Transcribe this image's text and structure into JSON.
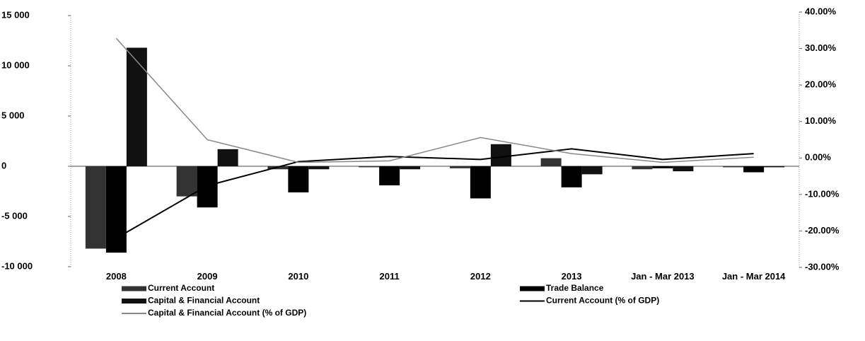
{
  "chart_data": {
    "type": "bar",
    "categories": [
      "2008",
      "2009",
      "2010",
      "2011",
      "2012",
      "2013",
      "Jan - Mar 2013",
      "Jan - Mar 2014"
    ],
    "series": [
      {
        "name": "Current Account",
        "color": "#333333",
        "values": [
          -8200,
          -3000,
          -300,
          -100,
          -200,
          800,
          -300,
          -100
        ]
      },
      {
        "name": "Trade Balance",
        "color": "#000000",
        "values": [
          -8600,
          -4100,
          -2600,
          -1900,
          -3200,
          -2100,
          -200,
          -600
        ]
      },
      {
        "name": "Capital & Financial Account",
        "color": "#111111",
        "values": [
          11800,
          1700,
          -300,
          -300,
          2200,
          -800,
          -500,
          -100
        ]
      },
      {
        "name": "Current Account (% of GDP)",
        "color": "#000000",
        "type": "line",
        "axis": "y2",
        "values": [
          -22,
          -7.6,
          -1,
          0.4,
          -0.4,
          2.5,
          -0.4,
          1.2
        ]
      },
      {
        "name": "Capital & Financial Account (% of GDP)",
        "color": "#888888",
        "type": "line",
        "axis": "y2",
        "values": [
          32.8,
          5,
          -1.2,
          -0.8,
          5.6,
          1.2,
          -1.2,
          0.2
        ]
      }
    ],
    "ylim": [
      -10000,
      15000
    ],
    "yticks": [
      {
        "value": -10000,
        "label": "-10 000"
      },
      {
        "value": -5000,
        "label": "-5 000"
      },
      0,
      {
        "value": 5000,
        "label": "5 000"
      },
      {
        "value": 10000,
        "label": "10 000"
      },
      {
        "value": 15000,
        "label": "15 000"
      }
    ],
    "y2lim": [
      -30,
      40
    ],
    "y2ticks": [
      {
        "value": -30,
        "label": "-30.00%"
      },
      {
        "value": -20,
        "label": "-20.00%"
      },
      {
        "value": -10,
        "label": "-10.00%"
      },
      {
        "value": 0,
        "label": "0.00%"
      },
      {
        "value": 10,
        "label": "10.00%"
      },
      {
        "value": 20,
        "label": "20.00%"
      },
      {
        "value": 30,
        "label": "30.00%"
      },
      {
        "value": 40,
        "label": "40.00%"
      }
    ]
  }
}
